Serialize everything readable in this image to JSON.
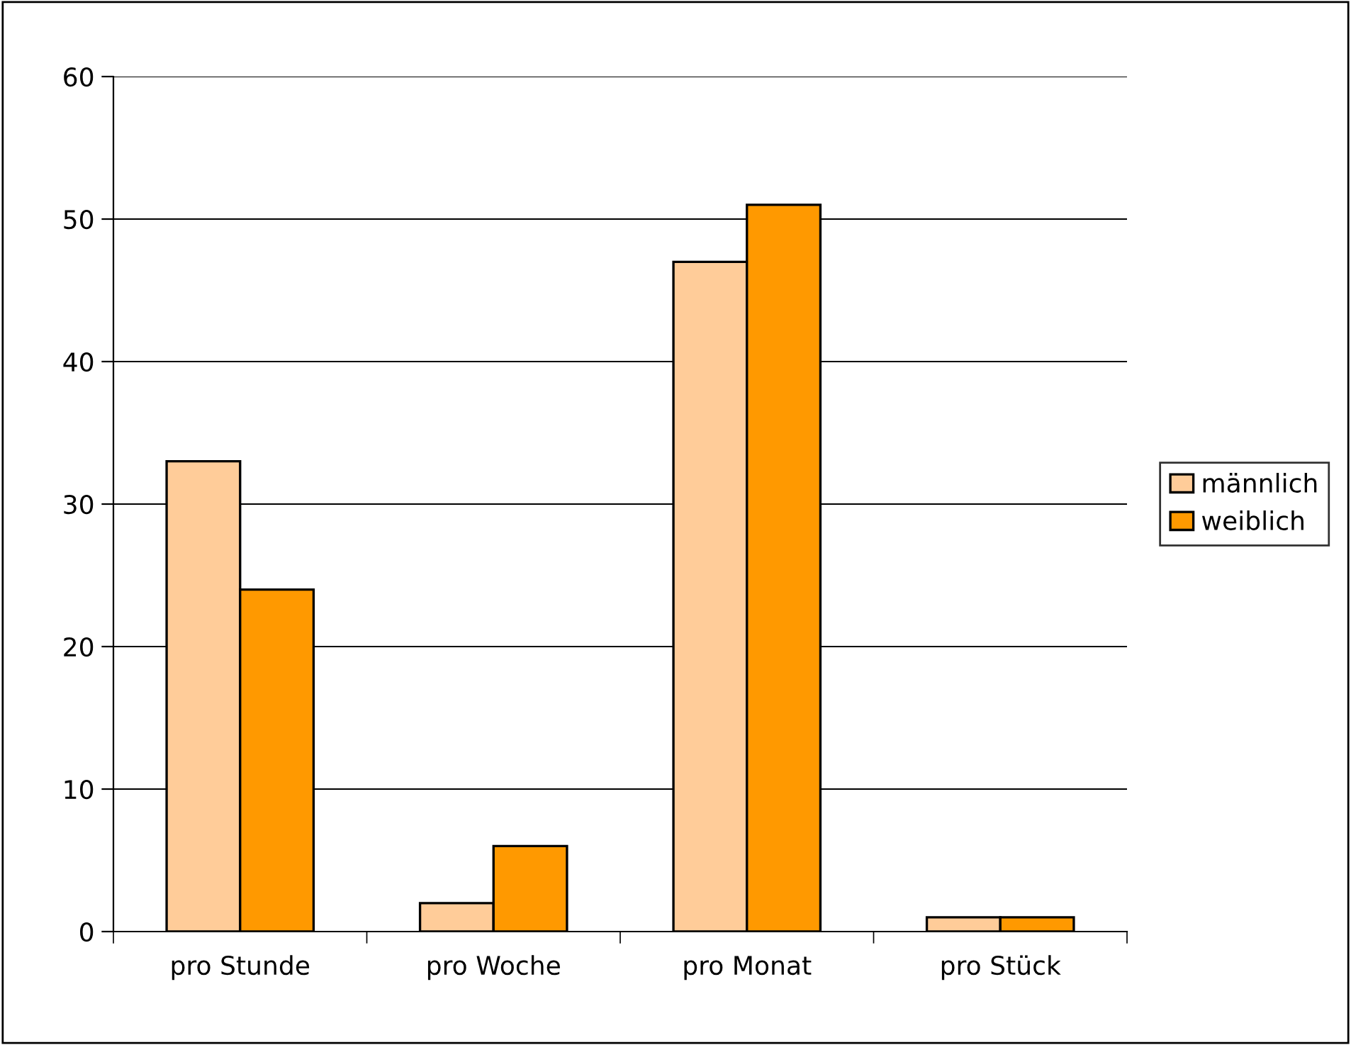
{
  "chart_data": {
    "type": "bar",
    "categories": [
      "pro Stunde",
      "pro Woche",
      "pro Monat",
      "pro Stück"
    ],
    "series": [
      {
        "name": "männlich",
        "color": "#ffcc99",
        "values": [
          33,
          2,
          47,
          1
        ]
      },
      {
        "name": "weiblich",
        "color": "#ff9900",
        "values": [
          24,
          6,
          51,
          1
        ]
      }
    ],
    "ylim": [
      0,
      60
    ],
    "yticks": [
      0,
      10,
      20,
      30,
      40,
      50,
      60
    ],
    "grid": "y",
    "legend": "right"
  }
}
